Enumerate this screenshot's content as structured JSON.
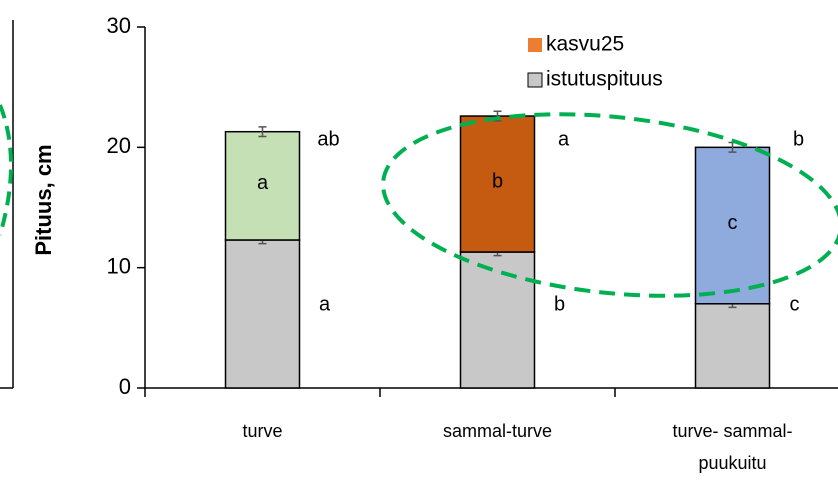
{
  "chart_data": {
    "type": "stacked_bar",
    "ylabel": "Pituus, cm",
    "categories": [
      "turve",
      "sammal-turve",
      "turve- sammal- puukuitu"
    ],
    "series": [
      {
        "name": "istutuspituus",
        "color": "#c8c8c8",
        "values": [
          12.3,
          11.3,
          7.0
        ],
        "errors": [
          0.3,
          0.3,
          0.3
        ],
        "letters": [
          "a",
          "b",
          "c"
        ]
      },
      {
        "name": "kasvu25",
        "color": "#ed7d31",
        "colors": [
          "#c5e0b4",
          "#c55a11",
          "#8faadc"
        ],
        "values": [
          9.0,
          11.3,
          13.0
        ],
        "errors": [
          0.4,
          0.4,
          0.4
        ],
        "letters": [
          "a",
          "b",
          "c"
        ]
      }
    ],
    "total_letters": [
      "ab",
      "a",
      "b"
    ],
    "ylim": [
      0,
      30
    ],
    "yticks": [
      0,
      10,
      20,
      30
    ]
  }
}
